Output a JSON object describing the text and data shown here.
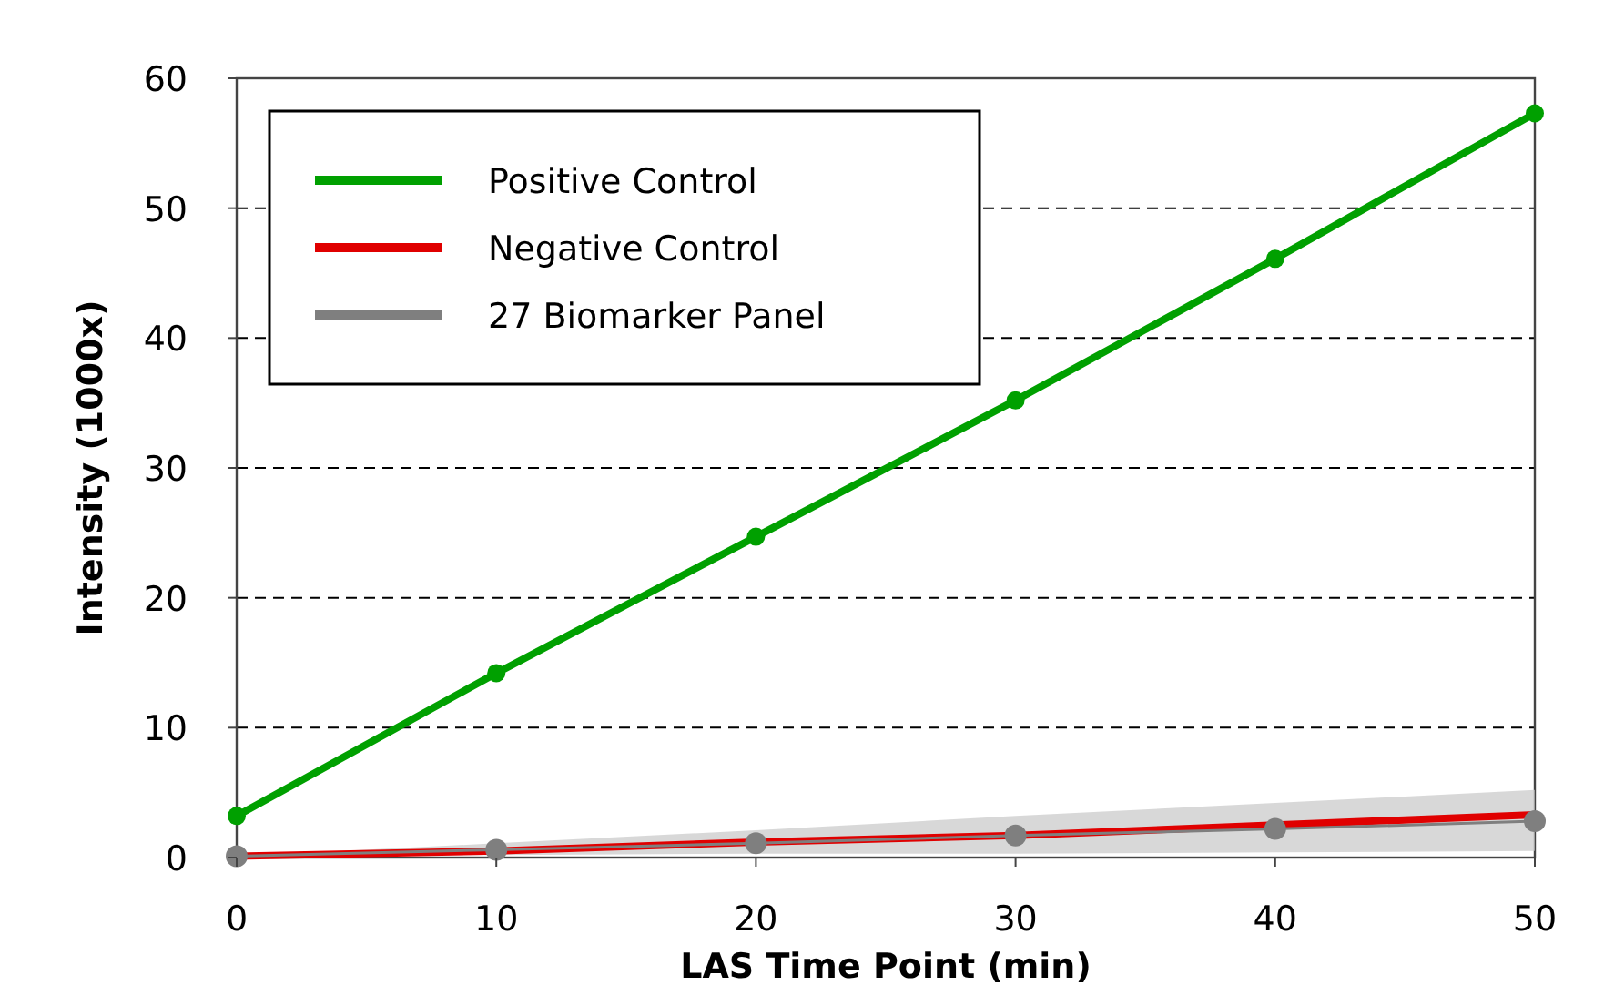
{
  "chart_data": {
    "type": "line",
    "xlabel": "LAS Time Point (min)",
    "ylabel": "Intensity (1000x)",
    "x": [
      0,
      10,
      20,
      30,
      40,
      50
    ],
    "xlim": [
      0,
      50
    ],
    "xticks": [
      0,
      10,
      20,
      30,
      40,
      50
    ],
    "ylim": [
      0,
      60
    ],
    "yticks": [
      0,
      10,
      20,
      30,
      40,
      50,
      60
    ],
    "grid": "y",
    "legend": "top left",
    "marker": "circle",
    "line_style": "solid",
    "series": [
      {
        "name": "Positive Control",
        "color": "#00a000",
        "values": [
          3.2,
          14.2,
          24.7,
          35.2,
          46.1,
          57.3
        ]
      },
      {
        "name": "Negative Control",
        "color": "#e00000",
        "marker": "none",
        "values": [
          0.1,
          0.5,
          1.2,
          1.7,
          2.5,
          3.3
        ]
      },
      {
        "name": "27 Biomarker Panel",
        "color": "#7f7f7f",
        "values": [
          0.1,
          0.6,
          1.1,
          1.7,
          2.2,
          2.8
        ],
        "lower": [
          0.1,
          0.2,
          0.3,
          0.3,
          0.4,
          0.5
        ],
        "upper": [
          0.1,
          1.1,
          2.1,
          3.2,
          4.2,
          5.2
        ]
      }
    ]
  }
}
